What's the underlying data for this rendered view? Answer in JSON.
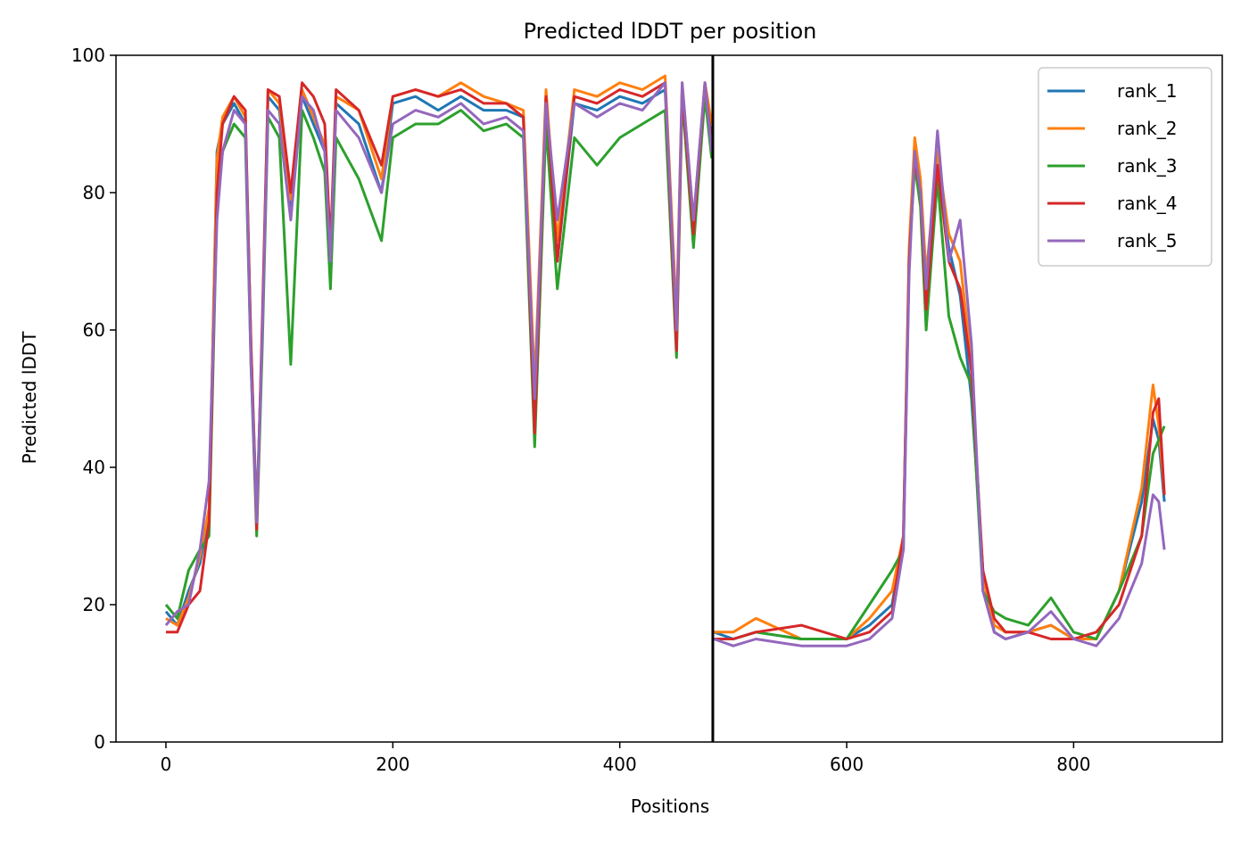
{
  "chart_data": {
    "type": "line",
    "title": "Predicted lDDT per position",
    "xlabel": "Positions",
    "ylabel": "Predicted lDDT",
    "xlim": [
      -44,
      931
    ],
    "ylim": [
      0,
      100
    ],
    "xticks": [
      0,
      200,
      400,
      600,
      800
    ],
    "yticks": [
      0,
      20,
      40,
      60,
      80,
      100
    ],
    "grid": false,
    "legend_position": "top-right",
    "chain_break": 482,
    "series": [
      {
        "name": "rank_1",
        "color": "#1f77b4",
        "x": [
          0,
          10,
          20,
          30,
          38,
          45,
          50,
          60,
          70,
          75,
          80,
          85,
          90,
          100,
          110,
          120,
          130,
          140,
          145,
          150,
          170,
          190,
          200,
          220,
          240,
          260,
          280,
          300,
          315,
          325,
          335,
          345,
          360,
          380,
          400,
          420,
          440,
          450,
          455,
          465,
          475,
          481,
          483,
          500,
          520,
          560,
          600,
          620,
          640,
          650,
          655,
          660,
          665,
          670,
          680,
          690,
          700,
          710,
          720,
          730,
          740,
          760,
          780,
          800,
          820,
          840,
          860,
          870,
          875,
          880
        ],
        "y": [
          19,
          17,
          22,
          26,
          33,
          86,
          90,
          93,
          90,
          58,
          33,
          60,
          94,
          92,
          78,
          94,
          90,
          86,
          70,
          93,
          90,
          80,
          93,
          94,
          92,
          94,
          92,
          92,
          91,
          48,
          94,
          70,
          93,
          92,
          94,
          93,
          95,
          60,
          95,
          75,
          95,
          88,
          16,
          15,
          16,
          15,
          15,
          17,
          20,
          30,
          70,
          86,
          80,
          65,
          84,
          72,
          65,
          50,
          25,
          16,
          15,
          16,
          17,
          15,
          15,
          22,
          35,
          47,
          44,
          35
        ]
      },
      {
        "name": "rank_2",
        "color": "#ff7f0e",
        "x": [
          0,
          10,
          20,
          30,
          38,
          45,
          50,
          60,
          70,
          75,
          80,
          85,
          90,
          100,
          110,
          120,
          130,
          140,
          145,
          150,
          170,
          190,
          200,
          220,
          240,
          260,
          280,
          300,
          315,
          325,
          335,
          345,
          360,
          380,
          400,
          420,
          440,
          450,
          455,
          465,
          475,
          481,
          483,
          500,
          520,
          560,
          600,
          620,
          640,
          650,
          655,
          660,
          665,
          670,
          680,
          690,
          700,
          710,
          720,
          730,
          740,
          760,
          780,
          800,
          820,
          840,
          860,
          870,
          875,
          880
        ],
        "y": [
          18,
          17,
          21,
          27,
          34,
          85,
          91,
          94,
          91,
          57,
          32,
          60,
          95,
          93,
          79,
          95,
          91,
          87,
          71,
          94,
          92,
          82,
          94,
          95,
          94,
          96,
          94,
          93,
          92,
          52,
          95,
          73,
          95,
          94,
          96,
          95,
          97,
          62,
          96,
          76,
          96,
          90,
          16,
          16,
          18,
          15,
          15,
          18,
          22,
          30,
          72,
          88,
          82,
          68,
          86,
          74,
          70,
          55,
          24,
          17,
          16,
          16,
          17,
          15,
          15,
          22,
          37,
          52,
          46,
          36
        ]
      },
      {
        "name": "rank_3",
        "color": "#2ca02c",
        "x": [
          0,
          10,
          20,
          30,
          38,
          45,
          50,
          60,
          70,
          75,
          80,
          85,
          90,
          100,
          110,
          120,
          130,
          140,
          145,
          150,
          170,
          190,
          200,
          220,
          240,
          260,
          280,
          300,
          315,
          325,
          335,
          345,
          360,
          380,
          400,
          420,
          440,
          450,
          455,
          465,
          475,
          481,
          483,
          500,
          520,
          560,
          600,
          620,
          640,
          650,
          655,
          660,
          665,
          670,
          680,
          690,
          700,
          710,
          720,
          730,
          740,
          760,
          780,
          800,
          820,
          840,
          860,
          870,
          875,
          880
        ],
        "y": [
          20,
          18,
          25,
          28,
          30,
          78,
          86,
          90,
          88,
          55,
          30,
          58,
          91,
          88,
          55,
          92,
          88,
          83,
          66,
          88,
          82,
          73,
          88,
          90,
          90,
          92,
          89,
          90,
          88,
          43,
          90,
          66,
          88,
          84,
          88,
          90,
          92,
          56,
          94,
          72,
          94,
          85,
          15,
          15,
          16,
          15,
          15,
          20,
          25,
          28,
          70,
          84,
          78,
          60,
          82,
          62,
          56,
          52,
          22,
          19,
          18,
          17,
          21,
          16,
          15,
          22,
          30,
          42,
          44,
          46
        ]
      },
      {
        "name": "rank_4",
        "color": "#d62728",
        "x": [
          0,
          10,
          20,
          30,
          38,
          45,
          50,
          60,
          70,
          75,
          80,
          85,
          90,
          100,
          110,
          120,
          130,
          140,
          145,
          150,
          170,
          190,
          200,
          220,
          240,
          260,
          280,
          300,
          315,
          325,
          335,
          345,
          360,
          380,
          400,
          420,
          440,
          450,
          455,
          465,
          475,
          481,
          483,
          500,
          520,
          560,
          600,
          620,
          640,
          650,
          655,
          660,
          665,
          670,
          680,
          690,
          700,
          710,
          720,
          730,
          740,
          760,
          780,
          800,
          820,
          840,
          860,
          870,
          875,
          880
        ],
        "y": [
          16,
          16,
          20,
          22,
          32,
          80,
          90,
          94,
          92,
          58,
          31,
          62,
          95,
          94,
          80,
          96,
          94,
          90,
          72,
          95,
          92,
          84,
          94,
          95,
          94,
          95,
          93,
          93,
          91,
          45,
          94,
          70,
          94,
          93,
          95,
          94,
          96,
          57,
          95,
          74,
          96,
          87,
          15,
          15,
          16,
          17,
          15,
          16,
          19,
          30,
          70,
          85,
          80,
          63,
          84,
          70,
          66,
          54,
          25,
          18,
          16,
          16,
          15,
          15,
          16,
          20,
          30,
          48,
          50,
          36
        ]
      },
      {
        "name": "rank_5",
        "color": "#9467bd",
        "x": [
          0,
          10,
          20,
          30,
          38,
          45,
          50,
          60,
          70,
          75,
          80,
          85,
          90,
          100,
          110,
          120,
          130,
          140,
          145,
          150,
          170,
          190,
          200,
          220,
          240,
          260,
          280,
          300,
          315,
          325,
          335,
          345,
          360,
          380,
          400,
          420,
          440,
          450,
          455,
          465,
          475,
          481,
          483,
          500,
          520,
          560,
          600,
          620,
          640,
          650,
          655,
          660,
          665,
          670,
          680,
          690,
          700,
          710,
          720,
          730,
          740,
          760,
          780,
          800,
          820,
          840,
          860,
          870,
          875,
          880
        ],
        "y": [
          17,
          19,
          20,
          28,
          38,
          76,
          86,
          92,
          90,
          55,
          32,
          60,
          92,
          90,
          76,
          94,
          92,
          86,
          70,
          92,
          88,
          80,
          90,
          92,
          91,
          93,
          90,
          91,
          89,
          50,
          93,
          76,
          93,
          91,
          93,
          92,
          96,
          60,
          96,
          76,
          96,
          86,
          15,
          14,
          15,
          14,
          14,
          15,
          18,
          28,
          68,
          86,
          80,
          66,
          89,
          70,
          76,
          58,
          22,
          16,
          15,
          16,
          19,
          15,
          14,
          18,
          26,
          36,
          35,
          28
        ]
      }
    ]
  }
}
